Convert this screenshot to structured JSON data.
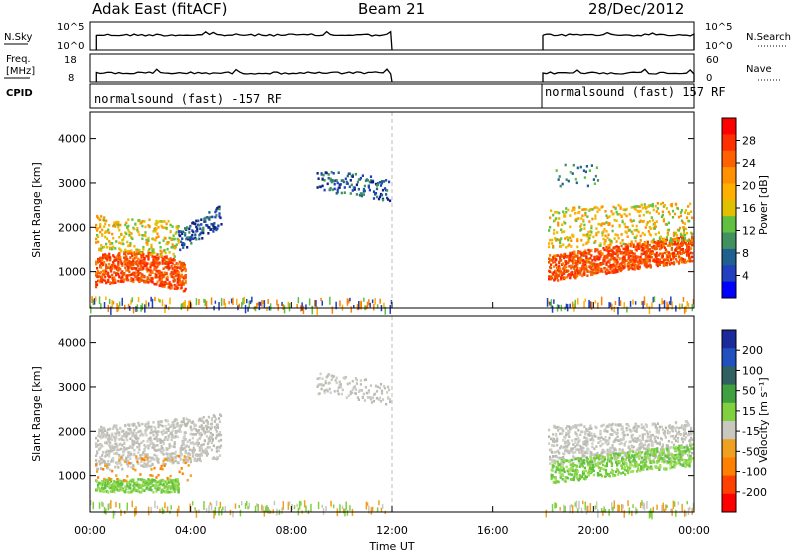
{
  "header": {
    "title": "Adak East (fitACF)",
    "beam": "Beam 21",
    "date": "28/Dec/2012"
  },
  "strip_panels": {
    "nsky": {
      "label": "N.Sky",
      "ticks": [
        "10^5",
        "10^0"
      ],
      "right_label": "N.Search",
      "right_ticks": [
        "10^5",
        "10^0"
      ]
    },
    "freq": {
      "label_line1": "Freq.",
      "label_line2": "[MHz]",
      "ticks": [
        "18",
        "8"
      ],
      "right_label": "Nave",
      "right_ticks": [
        "60",
        "0"
      ]
    },
    "cpid": {
      "label": "CPID",
      "segments": [
        "normalsound (fast) -157 RF",
        "normalsound (fast) 157 RF"
      ]
    }
  },
  "xaxis": {
    "label": "Time UT",
    "ticks": [
      "00:00",
      "04:00",
      "08:00",
      "12:00",
      "16:00",
      "20:00",
      "00:00"
    ]
  },
  "chart_data": [
    {
      "type": "heatmap",
      "name": "power",
      "ylabel": "Slant Range [km]",
      "yticks": [
        "1000",
        "2000",
        "3000",
        "4000"
      ],
      "ylim": [
        180,
        4600
      ],
      "xlim": [
        0,
        24
      ],
      "colorbar": {
        "label": "Power [dB]",
        "ticks": [
          "28",
          "24",
          "20",
          "16",
          "12",
          "8",
          "4"
        ],
        "colors": [
          "#ff0000",
          "#ff3000",
          "#ff6000",
          "#ff9000",
          "#ffb000",
          "#e0c000",
          "#60c040",
          "#409060",
          "#206090",
          "#2040c0",
          "#0000ff"
        ]
      }
    },
    {
      "type": "heatmap",
      "name": "velocity",
      "ylabel": "Slant Range [km]",
      "yticks": [
        "1000",
        "2000",
        "3000",
        "4000"
      ],
      "ylim": [
        180,
        4600
      ],
      "xlim": [
        0,
        24
      ],
      "colorbar": {
        "label": "Velocity [m s⁻¹]",
        "ticks": [
          "200",
          "100",
          "50",
          "15",
          "-15",
          "-50",
          "-100",
          "-200"
        ],
        "colors": [
          "#1a2a9a",
          "#2050c0",
          "#306060",
          "#40a040",
          "#80d040",
          "#c8c8c0",
          "#f0a020",
          "#ff8000",
          "#ff4000",
          "#ff0000"
        ]
      }
    }
  ]
}
